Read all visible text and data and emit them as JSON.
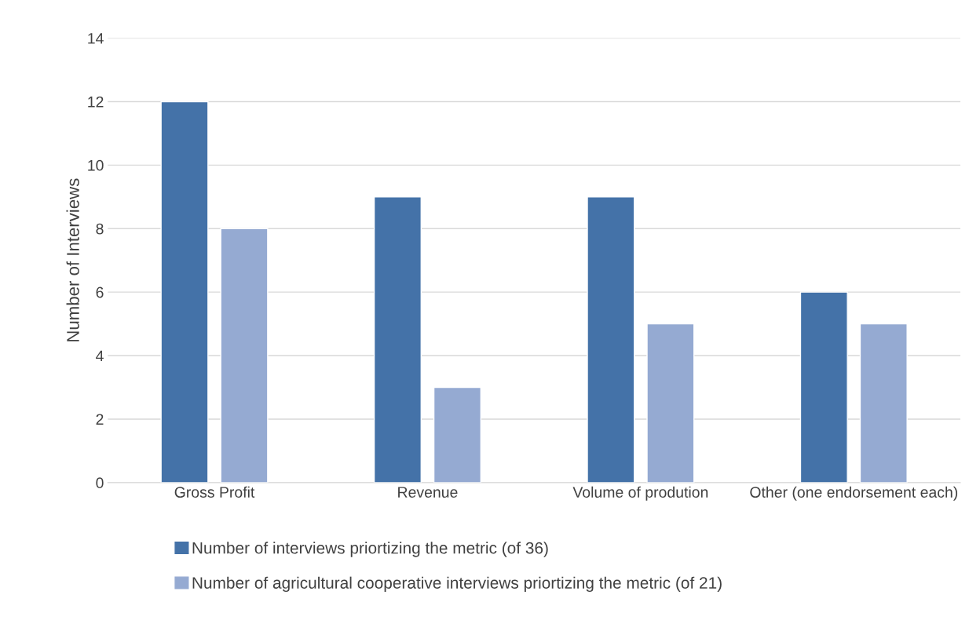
{
  "chart_data": {
    "type": "bar",
    "ylabel": "Number of Interviews",
    "categories": [
      "Gross Profit",
      "Revenue",
      "Volume of prodution",
      "Other (one endorsement each)"
    ],
    "series": [
      {
        "name": "Number of interviews priortizing the metric (of 36)",
        "color": "#4472a8",
        "values": [
          12,
          9,
          9,
          6
        ]
      },
      {
        "name": "Number of agricultural cooperative interviews priortizing the metric (of 21)",
        "color": "#95aad2",
        "values": [
          8,
          3,
          5,
          5
        ]
      }
    ],
    "ylim": [
      0,
      14
    ],
    "yticks": [
      0,
      2,
      4,
      6,
      8,
      10,
      12,
      14
    ],
    "grid": "y",
    "legend": "bottom"
  }
}
